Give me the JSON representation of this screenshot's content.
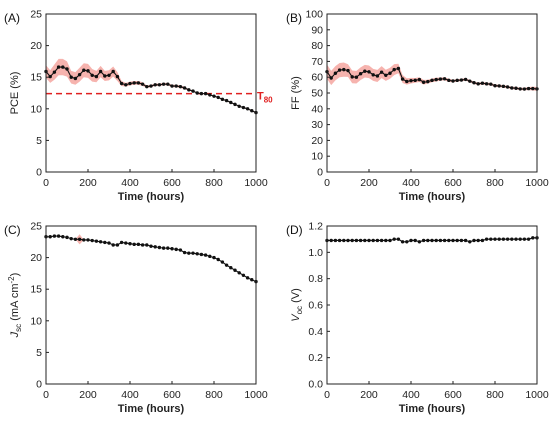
{
  "chart_data": [
    {
      "panel": "(A)",
      "type": "line",
      "xlabel": "Time (hours)",
      "ylabel": "PCE (%)",
      "xlim": [
        0,
        1000
      ],
      "ylim": [
        0,
        25
      ],
      "xticks": [
        0,
        200,
        400,
        600,
        800,
        1000
      ],
      "yticks": [
        0,
        5,
        10,
        15,
        20,
        25
      ],
      "x": [
        0,
        20,
        40,
        60,
        80,
        100,
        120,
        140,
        160,
        180,
        200,
        220,
        240,
        260,
        280,
        300,
        320,
        340,
        360,
        380,
        400,
        420,
        440,
        460,
        480,
        500,
        520,
        540,
        560,
        580,
        600,
        620,
        640,
        660,
        680,
        700,
        720,
        740,
        760,
        780,
        800,
        820,
        840,
        860,
        880,
        900,
        920,
        940,
        960,
        980,
        1000
      ],
      "y": [
        15.9,
        15.1,
        15.8,
        16.6,
        16.6,
        16.3,
        15.0,
        14.8,
        15.4,
        16.1,
        16.0,
        15.3,
        15.1,
        15.9,
        15.2,
        15.3,
        15.9,
        15.1,
        14.0,
        13.8,
        14.0,
        14.1,
        14.1,
        13.9,
        13.5,
        13.6,
        13.8,
        13.8,
        13.9,
        13.9,
        13.6,
        13.6,
        13.5,
        13.3,
        13.0,
        12.8,
        12.5,
        12.4,
        12.4,
        12.2,
        12.0,
        11.8,
        11.5,
        11.3,
        11.0,
        10.7,
        10.4,
        10.2,
        10.0,
        9.7,
        9.4
      ],
      "band": [
        1.0,
        1.0,
        1.2,
        1.3,
        1.3,
        1.2,
        1.0,
        1.0,
        1.1,
        1.1,
        1.1,
        1.0,
        0.9,
        0.9,
        0.8,
        0.8,
        0.8,
        0.7,
        0.4,
        0.3,
        0.3,
        0.3,
        0.3,
        0.3,
        0.2,
        0.2,
        0.2,
        0.2,
        0.2,
        0.2,
        0.2,
        0.2,
        0.2,
        0.2,
        0.1,
        0.1,
        0.1,
        0.1,
        0.1,
        0.1,
        0.1,
        0.1,
        0.1,
        0.1,
        0.1,
        0.1,
        0.1,
        0.1,
        0.1,
        0.1,
        0.1
      ],
      "reference_line": {
        "y": 12.4,
        "label": "T",
        "label_sub": "80",
        "color": "#e02020"
      }
    },
    {
      "panel": "(B)",
      "type": "line",
      "xlabel": "Time (hours)",
      "ylabel": "FF (%)",
      "xlim": [
        0,
        1000
      ],
      "ylim": [
        0,
        100
      ],
      "xticks": [
        0,
        200,
        400,
        600,
        800,
        1000
      ],
      "yticks": [
        0,
        10,
        20,
        30,
        40,
        50,
        60,
        70,
        80,
        90,
        100
      ],
      "x": [
        0,
        20,
        40,
        60,
        80,
        100,
        120,
        140,
        160,
        180,
        200,
        220,
        240,
        260,
        280,
        300,
        320,
        340,
        360,
        380,
        400,
        420,
        440,
        460,
        480,
        500,
        520,
        540,
        560,
        580,
        600,
        620,
        640,
        660,
        680,
        700,
        720,
        740,
        760,
        780,
        800,
        820,
        840,
        860,
        880,
        900,
        920,
        940,
        960,
        980,
        1000
      ],
      "y": [
        63.5,
        59.5,
        62.5,
        64.5,
        64.8,
        64.2,
        60.2,
        60.0,
        62.2,
        63.8,
        63.4,
        61.5,
        60.8,
        63.2,
        61.2,
        62.5,
        64.8,
        65.5,
        58.8,
        57.3,
        57.8,
        58.0,
        58.5,
        56.8,
        57.2,
        58.0,
        58.5,
        58.8,
        59.0,
        58.0,
        57.6,
        58.0,
        58.2,
        58.6,
        57.5,
        56.5,
        55.8,
        56.2,
        55.8,
        55.6,
        54.6,
        54.5,
        54.2,
        53.8,
        53.2,
        53.0,
        52.6,
        52.5,
        52.8,
        52.8,
        52.6
      ],
      "band": [
        4.5,
        4.5,
        4.5,
        4.5,
        4.5,
        4.0,
        4.0,
        4.0,
        4.0,
        4.0,
        4.0,
        3.8,
        3.8,
        3.8,
        3.5,
        3.5,
        3.5,
        3.0,
        2.5,
        2.0,
        1.8,
        1.5,
        1.5,
        1.5,
        1.2,
        1.2,
        1.2,
        1.0,
        1.0,
        1.0,
        0.8,
        0.8,
        0.8,
        0.8,
        0.8,
        0.8,
        0.8,
        0.8,
        0.8,
        0.8,
        0.8,
        0.8,
        0.8,
        0.8,
        0.8,
        0.8,
        0.8,
        0.8,
        1.0,
        1.2,
        1.2
      ]
    },
    {
      "panel": "(C)",
      "type": "line",
      "xlabel": "Time (hours)",
      "ylabel": "J",
      "ylabel_sub": "sc",
      "ylabel_unit": " (mA cm",
      "ylabel_sup": "-2",
      "ylabel_end": ")",
      "xlim": [
        0,
        1000
      ],
      "ylim": [
        0,
        25
      ],
      "xticks": [
        0,
        200,
        400,
        600,
        800,
        1000
      ],
      "yticks": [
        0,
        5,
        10,
        15,
        20,
        25
      ],
      "x": [
        0,
        20,
        40,
        60,
        80,
        100,
        120,
        140,
        160,
        180,
        200,
        220,
        240,
        260,
        280,
        300,
        320,
        340,
        360,
        380,
        400,
        420,
        440,
        460,
        480,
        500,
        520,
        540,
        560,
        580,
        600,
        620,
        640,
        660,
        680,
        700,
        720,
        740,
        760,
        780,
        800,
        820,
        840,
        860,
        880,
        900,
        920,
        940,
        960,
        980,
        1000
      ],
      "y": [
        23.3,
        23.3,
        23.4,
        23.4,
        23.3,
        23.2,
        23.0,
        22.9,
        22.9,
        22.8,
        22.8,
        22.7,
        22.6,
        22.5,
        22.4,
        22.3,
        22.0,
        22.0,
        22.4,
        22.3,
        22.2,
        22.1,
        22.1,
        22.0,
        22.0,
        21.8,
        21.7,
        21.6,
        21.5,
        21.5,
        21.4,
        21.3,
        21.2,
        20.8,
        20.7,
        20.7,
        20.6,
        20.5,
        20.4,
        20.2,
        20.0,
        19.7,
        19.3,
        18.8,
        18.4,
        18.0,
        17.6,
        17.2,
        16.8,
        16.5,
        16.2
      ],
      "band": [
        0,
        0,
        0,
        0,
        0,
        0,
        0,
        0,
        0.8,
        0,
        0,
        0,
        0,
        0,
        0,
        0,
        0,
        0,
        0,
        0,
        0,
        0,
        0,
        0,
        0,
        0,
        0,
        0,
        0,
        0,
        0,
        0,
        0,
        0,
        0,
        0,
        0,
        0,
        0,
        0,
        0,
        0,
        0,
        0,
        0,
        0,
        0,
        0,
        0,
        0,
        0
      ]
    },
    {
      "panel": "(D)",
      "type": "line",
      "xlabel": "Time (hours)",
      "ylabel": "V",
      "ylabel_sub": "oc",
      "ylabel_unit": " (V)",
      "xlim": [
        0,
        1000
      ],
      "ylim": [
        0,
        1.2
      ],
      "xticks": [
        0,
        200,
        400,
        600,
        800,
        1000
      ],
      "yticks": [
        0.0,
        0.2,
        0.4,
        0.6,
        0.8,
        1.0,
        1.2
      ],
      "x": [
        0,
        20,
        40,
        60,
        80,
        100,
        120,
        140,
        160,
        180,
        200,
        220,
        240,
        260,
        280,
        300,
        320,
        340,
        360,
        380,
        400,
        420,
        440,
        460,
        480,
        500,
        520,
        540,
        560,
        580,
        600,
        620,
        640,
        660,
        680,
        700,
        720,
        740,
        760,
        780,
        800,
        820,
        840,
        860,
        880,
        900,
        920,
        940,
        960,
        980,
        1000
      ],
      "y": [
        1.09,
        1.09,
        1.09,
        1.09,
        1.09,
        1.09,
        1.09,
        1.09,
        1.09,
        1.09,
        1.09,
        1.09,
        1.09,
        1.09,
        1.09,
        1.09,
        1.1,
        1.1,
        1.08,
        1.08,
        1.09,
        1.09,
        1.08,
        1.09,
        1.09,
        1.09,
        1.09,
        1.09,
        1.09,
        1.09,
        1.09,
        1.09,
        1.09,
        1.09,
        1.08,
        1.09,
        1.09,
        1.09,
        1.1,
        1.1,
        1.1,
        1.1,
        1.1,
        1.1,
        1.1,
        1.1,
        1.1,
        1.1,
        1.1,
        1.11,
        1.11
      ],
      "band": []
    }
  ],
  "style": {
    "line_color": "#111111",
    "band_color": "#f4a6a0",
    "ref_color": "#e02020"
  }
}
